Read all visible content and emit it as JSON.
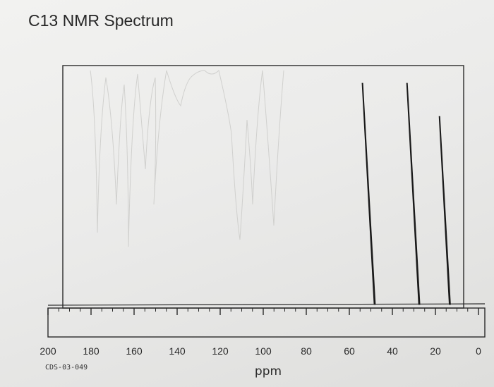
{
  "title": "C13 NMR Spectrum",
  "code": "CDS-03-049",
  "chart_data": {
    "type": "line",
    "title": "C13 NMR Spectrum",
    "xlabel": "ppm",
    "ylabel": "",
    "xlim": [
      200,
      0
    ],
    "x_reversed": true,
    "grid": false,
    "x_ticks": [
      200,
      180,
      160,
      140,
      120,
      100,
      80,
      60,
      40,
      20,
      0
    ],
    "x_tick_labels": [
      "200",
      "180",
      "160",
      "140",
      "120",
      "100",
      "80",
      "60",
      "40",
      "20",
      "0"
    ],
    "peaks": [
      {
        "ppm": 48.2,
        "intensity": 1.0
      },
      {
        "ppm": 27.5,
        "intensity": 1.0
      },
      {
        "ppm": 13.3,
        "intensity": 0.85
      }
    ]
  }
}
